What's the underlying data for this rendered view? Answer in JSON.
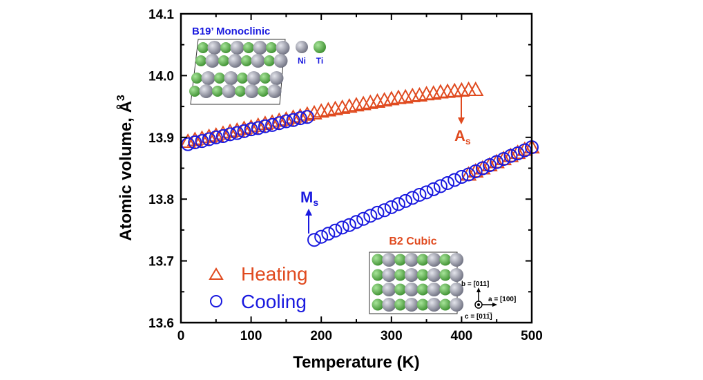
{
  "chart_data": {
    "type": "scatter",
    "xlabel": "Temperature (K)",
    "ylabel": "Atomic volume, Å",
    "ylabel_superscript": "3",
    "xlim": [
      0,
      500
    ],
    "ylim": [
      13.6,
      14.1
    ],
    "xticks": [
      "0",
      "100",
      "200",
      "300",
      "400",
      "500"
    ],
    "yticks": [
      "13.6",
      "13.7",
      "13.8",
      "13.9",
      "14.0",
      "14.1"
    ],
    "grid": false,
    "legend_placement": "bottom-left",
    "series": [
      {
        "name": "Heating",
        "marker": "triangle-open",
        "color": "#e04a1f",
        "x": [
          10,
          20,
          30,
          40,
          50,
          60,
          70,
          80,
          90,
          100,
          110,
          120,
          130,
          140,
          150,
          160,
          170,
          180,
          190,
          200,
          210,
          220,
          230,
          240,
          250,
          260,
          270,
          280,
          290,
          300,
          310,
          320,
          330,
          340,
          350,
          360,
          370,
          380,
          390,
          400,
          410,
          420,
          410,
          420,
          430,
          440,
          450,
          460,
          470,
          480,
          490,
          500
        ],
        "y": [
          13.893,
          13.896,
          13.898,
          13.901,
          13.903,
          13.906,
          13.909,
          13.911,
          13.914,
          13.916,
          13.919,
          13.922,
          13.924,
          13.927,
          13.929,
          13.932,
          13.934,
          13.937,
          13.939,
          13.942,
          13.944,
          13.946,
          13.948,
          13.95,
          13.952,
          13.954,
          13.956,
          13.958,
          13.96,
          13.962,
          13.964,
          13.965,
          13.967,
          13.968,
          13.97,
          13.971,
          13.973,
          13.974,
          13.975,
          13.976,
          13.977,
          13.977,
          13.84,
          13.845,
          13.85,
          13.855,
          13.86,
          13.865,
          13.87,
          13.875,
          13.88,
          13.884
        ]
      },
      {
        "name": "Cooling",
        "marker": "circle-open",
        "color": "#1a1adf",
        "x": [
          500,
          490,
          480,
          470,
          460,
          450,
          440,
          430,
          420,
          410,
          400,
          390,
          380,
          370,
          360,
          350,
          340,
          330,
          320,
          310,
          300,
          290,
          280,
          270,
          260,
          250,
          240,
          230,
          220,
          210,
          200,
          190,
          180,
          170,
          160,
          150,
          140,
          130,
          120,
          110,
          100,
          90,
          80,
          70,
          60,
          50,
          40,
          30,
          20,
          10
        ],
        "y": [
          13.884,
          13.879,
          13.874,
          13.87,
          13.865,
          13.86,
          13.855,
          13.85,
          13.845,
          13.84,
          13.836,
          13.831,
          13.826,
          13.821,
          13.816,
          13.811,
          13.807,
          13.802,
          13.797,
          13.792,
          13.787,
          13.782,
          13.778,
          13.773,
          13.768,
          13.763,
          13.758,
          13.754,
          13.749,
          13.744,
          13.739,
          13.734,
          13.933,
          13.931,
          13.928,
          13.926,
          13.923,
          13.92,
          13.918,
          13.915,
          13.913,
          13.91,
          13.907,
          13.905,
          13.902,
          13.9,
          13.897,
          13.894,
          13.892,
          13.889
        ]
      }
    ],
    "annotations": [
      {
        "text": "A",
        "subscript": "s",
        "color": "#e04a1f",
        "arrow": "down",
        "x": 415,
        "y": 13.975
      },
      {
        "text": "M",
        "subscript": "s",
        "color": "#1a1adf",
        "arrow": "up",
        "x": 187,
        "y": 13.734
      }
    ]
  },
  "insets": {
    "monoclinic": {
      "title": "B19’ Monoclinic",
      "title_color": "#1a1adf",
      "legend": [
        {
          "label": "Ni",
          "color": "#9a9ca8"
        },
        {
          "label": "Ti",
          "color": "#5cb84a"
        }
      ]
    },
    "cubic": {
      "title": "B2 Cubic",
      "title_color": "#e04a1f",
      "axis_b": "b = [011]",
      "axis_a": "a = [100]",
      "axis_c": "c = [011̅]"
    }
  }
}
